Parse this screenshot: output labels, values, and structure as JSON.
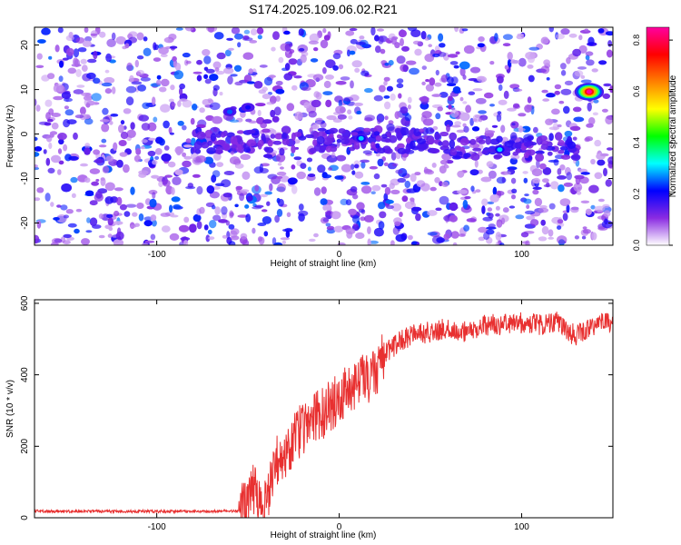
{
  "figure": {
    "title": "S174.2025.109.06.02.R21"
  },
  "colors": {
    "line": "#e83030",
    "frame": "#000000",
    "background": "#ffffff"
  },
  "chart_data": [
    {
      "type": "heatmap",
      "xlabel": "Height of straight line (km)",
      "ylabel": "Frequency (Hz)",
      "xlim": [
        -167,
        150
      ],
      "ylim": [
        -25,
        24
      ],
      "xticks": [
        -100,
        0,
        100
      ],
      "yticks": [
        -20,
        -10,
        0,
        10,
        20
      ],
      "colorbar": {
        "label": "Normalized spectral amplitude",
        "range": [
          0,
          0.85
        ],
        "ticks": [
          0,
          0.2,
          0.4,
          0.6,
          0.8
        ],
        "tick_labels": [
          "0.0",
          "0.2",
          "0.4",
          "0.6",
          "0.8"
        ],
        "colormap": [
          "#ffffff",
          "#8a2be2",
          "#0000ff",
          "#00ffff",
          "#00ff00",
          "#ffff00",
          "#ff8000",
          "#ff0000",
          "#ff00a0"
        ]
      },
      "features": [
        {
          "x": -60,
          "y": 5,
          "amplitude": 0.25
        },
        {
          "x": -50,
          "y": 6,
          "amplitude": 0.2
        },
        {
          "x": 12,
          "y": -1,
          "amplitude": 0.3
        },
        {
          "x": 88,
          "y": -3.5,
          "amplitude": 0.3
        },
        {
          "x": 137,
          "y": 9.5,
          "amplitude": 0.85
        }
      ]
    },
    {
      "type": "line",
      "xlabel": "Height of straight line (km)",
      "ylabel": "SNR (10 * v/v)",
      "xlim": [
        -167,
        150
      ],
      "ylim": [
        0,
        610
      ],
      "xticks": [
        -100,
        0,
        100
      ],
      "yticks": [
        0,
        200,
        400,
        600
      ],
      "series": [
        {
          "x": [
            -167,
            -150,
            -130,
            -110,
            -90,
            -70,
            -55,
            -50,
            -47,
            -45,
            -42,
            -40,
            -37,
            -35,
            -30,
            -25,
            -20,
            -15,
            -10,
            -5,
            0,
            5,
            10,
            15,
            20,
            25,
            30,
            35,
            40,
            50,
            60,
            70,
            80,
            90,
            100,
            110,
            120,
            125,
            130,
            140,
            150
          ],
          "y": [
            18,
            18,
            18,
            18,
            18,
            18,
            20,
            40,
            80,
            50,
            30,
            40,
            120,
            150,
            180,
            220,
            250,
            270,
            290,
            310,
            340,
            360,
            380,
            390,
            410,
            460,
            480,
            500,
            510,
            520,
            530,
            520,
            540,
            540,
            545,
            540,
            550,
            520,
            510,
            540,
            550
          ]
        }
      ]
    }
  ]
}
